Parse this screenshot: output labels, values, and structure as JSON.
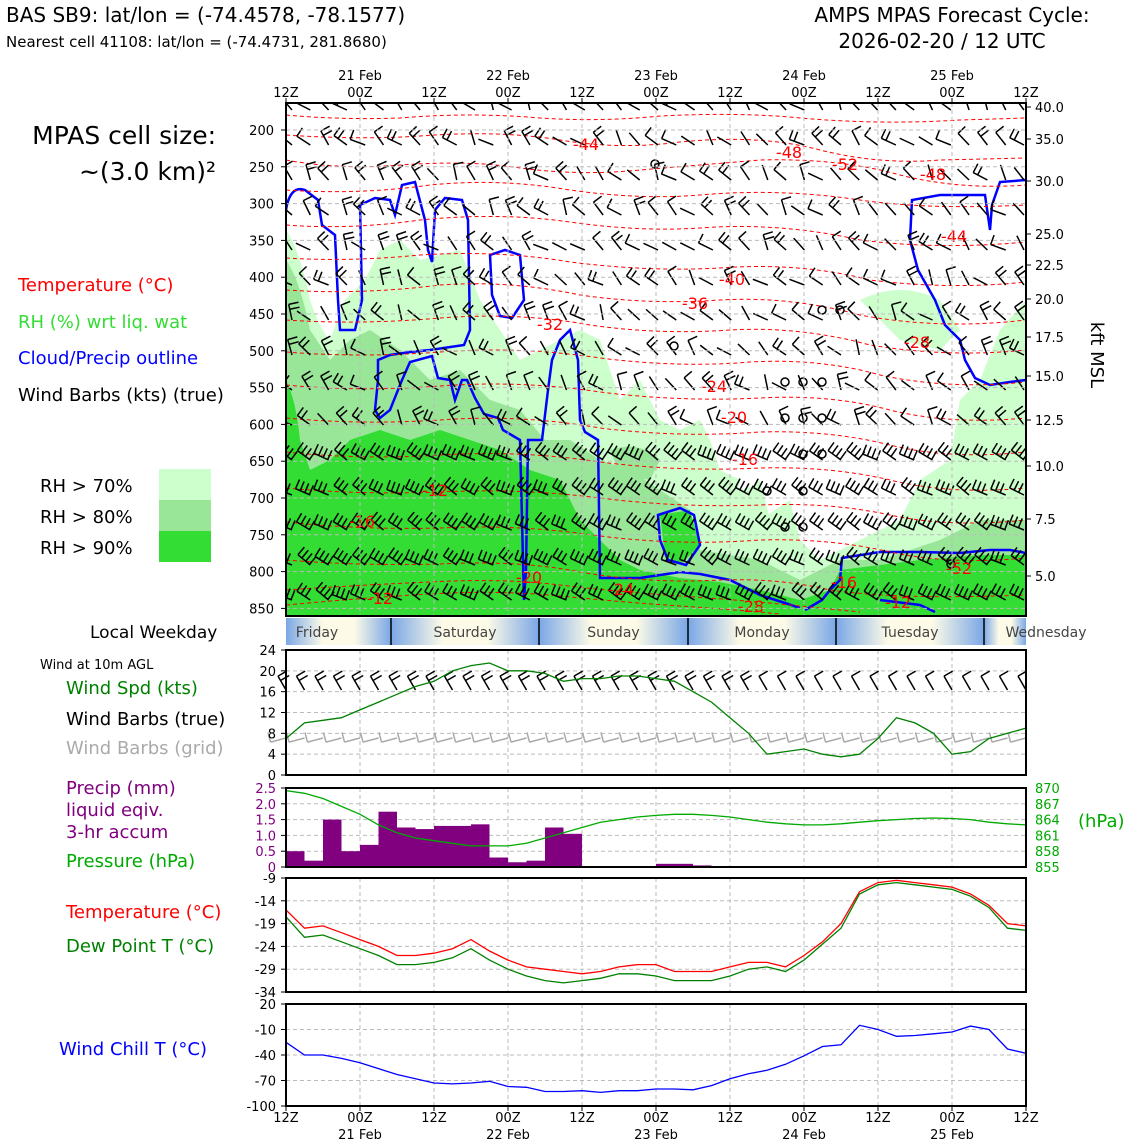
{
  "header": {
    "station_line": "BAS SB9: lat/lon = (-74.4578, -78.1577)",
    "cell_line": "Nearest cell 41108: lat/lon = (-74.4731, 281.8680)",
    "cycle_title": "AMPS MPAS Forecast Cycle:",
    "cycle_date": "2026-02-20 / 12 UTC"
  },
  "left_labels": {
    "cell_size_title": "MPAS cell size:",
    "cell_size_value": "~(3.0 km)²",
    "legend_temperature": "Temperature (°C)",
    "legend_rh": "RH (%) wrt liq. wat",
    "legend_cloud": "Cloud/Precip outline",
    "legend_wind": "Wind Barbs (kts) (true)",
    "rh_70": "RH > 70%",
    "rh_80": "RH > 80%",
    "rh_90": "RH > 90%",
    "local_weekday": "Local Weekday",
    "wind_10m": "Wind at 10m AGL",
    "wind_spd": "Wind Spd (kts)",
    "barbs_true": "Wind Barbs (true)",
    "barbs_grid": "Wind Barbs (grid)",
    "precip_1": "Precip (mm)",
    "precip_2": "liquid eqiv.",
    "precip_3": "3-hr accum",
    "pressure": "Pressure (hPa)",
    "temp": "Temperature (°C)",
    "dewpoint": "Dew Point T (°C)",
    "windchill": "Wind Chill T (°C)",
    "hpa_unit": "(hPa)",
    "kft_label": "kft MSL"
  },
  "colors": {
    "temperature": "#ff0000",
    "rh": "#22cc22",
    "cloud": "#0000ff",
    "wind": "#000000",
    "grid_barbs": "#aaaaaa",
    "precip": "#800080",
    "pressure": "#00aa00",
    "dewpoint": "#008000",
    "windchill": "#0000ff",
    "rh70": "#ccffcc",
    "rh80": "#99e699",
    "rh90": "#33dd33"
  },
  "time_axis": {
    "hour_labels": [
      "12Z",
      "00Z",
      "12Z",
      "00Z",
      "12Z",
      "00Z",
      "12Z",
      "00Z",
      "12Z",
      "00Z",
      "12Z"
    ],
    "date_labels": [
      "21 Feb",
      "22 Feb",
      "23 Feb",
      "24 Feb",
      "25 Feb"
    ]
  },
  "weekdays": [
    "Friday",
    "Saturday",
    "Sunday",
    "Monday",
    "Tuesday",
    "Wednesday"
  ],
  "chart_data": [
    {
      "type": "heatmap",
      "name": "time-height cross section",
      "y_axis_label": "",
      "pressure_levels_hPa": [
        200,
        250,
        300,
        350,
        400,
        450,
        500,
        550,
        600,
        650,
        700,
        750,
        800,
        850
      ],
      "height_kft_labels": [
        "40.0",
        "35.0",
        "30.0",
        "25.0",
        "22.5",
        "20.0",
        "17.5",
        "15.0",
        "12.5",
        "10.0",
        "7.5",
        "5.0"
      ],
      "right_axis_label": "kft MSL",
      "temperature_contour_labels": [
        "-44",
        "-48",
        "-52",
        "-48",
        "-44",
        "-40",
        "-36",
        "-32",
        "-28",
        "-24",
        "-20",
        "-16",
        "-12",
        "-16",
        "-20",
        "-24",
        "-28",
        "-12",
        "-12",
        "-16",
        "-52"
      ],
      "rh_thresholds_pct": [
        70,
        80,
        90
      ]
    },
    {
      "type": "line",
      "name": "wind speed at 10m",
      "ylim": [
        0,
        24
      ],
      "yticks": [
        "0",
        "4",
        "8",
        "12",
        "16",
        "20",
        "24"
      ],
      "x_hours": [
        0,
        3,
        6,
        9,
        12,
        15,
        18,
        21,
        24,
        27,
        30,
        33,
        36,
        39,
        42,
        45,
        48,
        51,
        54,
        57,
        60,
        63,
        66,
        69,
        72,
        75,
        78,
        81,
        84,
        87,
        90,
        93,
        96,
        99,
        102,
        105,
        108,
        111,
        114,
        117,
        120
      ],
      "series": [
        {
          "name": "Wind Spd (kts)",
          "values": [
            7,
            10,
            10.5,
            11,
            12.5,
            14,
            15.5,
            17,
            18,
            20,
            21,
            21.5,
            20,
            20,
            19.5,
            18,
            18.5,
            18.5,
            19,
            19,
            18.5,
            18,
            16,
            14,
            11,
            8,
            4,
            4.5,
            5,
            4,
            3.5,
            4,
            7,
            11,
            10,
            8,
            4,
            4.5,
            7,
            8,
            9
          ]
        }
      ]
    },
    {
      "type": "bar",
      "name": "precipitation and pressure",
      "ylim": [
        0,
        2.5
      ],
      "yticks": [
        "0",
        "0.5",
        "1.0",
        "1.5",
        "2.0",
        "2.5"
      ],
      "pressure_ticks": [
        "870",
        "867",
        "864",
        "861",
        "858",
        "855"
      ],
      "x_hours": [
        0,
        3,
        6,
        9,
        12,
        15,
        18,
        21,
        24,
        27,
        30,
        33,
        36,
        39,
        42,
        45,
        48,
        51,
        54,
        57,
        60,
        63,
        66,
        69,
        72,
        75,
        78,
        81,
        84,
        87,
        90,
        93,
        96,
        99,
        102,
        105,
        108,
        111,
        114,
        117,
        120
      ],
      "series": [
        {
          "name": "Precip (mm)",
          "values": [
            0.5,
            0.2,
            1.5,
            0.5,
            0.7,
            1.75,
            1.25,
            1.2,
            1.3,
            1.3,
            1.35,
            0.3,
            0.15,
            0.2,
            1.25,
            1.05,
            0,
            0,
            0,
            0,
            0.1,
            0.1,
            0.05,
            0,
            0,
            0,
            0,
            0,
            0,
            0,
            0,
            0,
            0,
            0,
            0,
            0,
            0,
            0,
            0,
            0,
            0
          ]
        },
        {
          "name": "Pressure (hPa)",
          "values": [
            869.5,
            869,
            868,
            866.5,
            865,
            863,
            861.5,
            860.5,
            860,
            859.5,
            859,
            859,
            859,
            859.5,
            860.5,
            861.5,
            862.5,
            863.5,
            864,
            864.5,
            864.8,
            865,
            865,
            864.8,
            864.5,
            864,
            863.5,
            863.2,
            863,
            863,
            863.2,
            863.5,
            863.8,
            864,
            864.2,
            864.3,
            864.2,
            864,
            863.5,
            863.2,
            863
          ]
        }
      ]
    },
    {
      "type": "line",
      "name": "temperature and dew point",
      "ylim": [
        -34,
        -9
      ],
      "yticks": [
        "-9",
        "-14",
        "-19",
        "-24",
        "-29",
        "-34"
      ],
      "x_hours": [
        0,
        3,
        6,
        9,
        12,
        15,
        18,
        21,
        24,
        27,
        30,
        33,
        36,
        39,
        42,
        45,
        48,
        51,
        54,
        57,
        60,
        63,
        66,
        69,
        72,
        75,
        78,
        81,
        84,
        87,
        90,
        93,
        96,
        99,
        102,
        105,
        108,
        111,
        114,
        117,
        120
      ],
      "series": [
        {
          "name": "Temperature (°C)",
          "values": [
            -16,
            -20,
            -19.5,
            -21,
            -22.5,
            -24,
            -26,
            -26,
            -25.5,
            -24.5,
            -22.5,
            -25,
            -27,
            -28.5,
            -29,
            -29.5,
            -30,
            -29.5,
            -28.5,
            -28,
            -28,
            -29.5,
            -29.5,
            -29.5,
            -28.5,
            -27.5,
            -27.5,
            -28.5,
            -26,
            -23,
            -19,
            -12,
            -10,
            -9.5,
            -10,
            -10.5,
            -11,
            -12.5,
            -15,
            -19,
            -19.5
          ]
        },
        {
          "name": "Dew Point T (°C)",
          "values": [
            -17.5,
            -22,
            -21.5,
            -23,
            -24.5,
            -26,
            -28,
            -28,
            -27.5,
            -26.5,
            -24.5,
            -27,
            -29,
            -30.5,
            -31.5,
            -32,
            -31.5,
            -31,
            -30,
            -30,
            -30.5,
            -31.5,
            -31.5,
            -31.5,
            -30.5,
            -29,
            -28.5,
            -29.5,
            -27,
            -23.5,
            -20,
            -12.5,
            -10.5,
            -10,
            -10.5,
            -11,
            -11.5,
            -13,
            -15.5,
            -20,
            -20.5
          ]
        }
      ]
    },
    {
      "type": "line",
      "name": "wind chill",
      "ylim": [
        -100,
        20
      ],
      "yticks": [
        "20",
        "-10",
        "-40",
        "-70",
        "-100"
      ],
      "x_hours": [
        0,
        3,
        6,
        9,
        12,
        15,
        18,
        21,
        24,
        27,
        30,
        33,
        36,
        39,
        42,
        45,
        48,
        51,
        54,
        57,
        60,
        63,
        66,
        69,
        72,
        75,
        78,
        81,
        84,
        87,
        90,
        93,
        96,
        99,
        102,
        105,
        108,
        111,
        114,
        117,
        120
      ],
      "series": [
        {
          "name": "Wind Chill T (°C)",
          "values": [
            -25,
            -40,
            -40,
            -44,
            -49,
            -56,
            -63,
            -68,
            -73,
            -74,
            -73,
            -71,
            -77,
            -78,
            -83,
            -83,
            -82,
            -84,
            -82,
            -82,
            -80,
            -80,
            -81,
            -76,
            -68,
            -62,
            -58,
            -51,
            -41,
            -30,
            -28,
            -5,
            -10,
            -18,
            -17,
            -15,
            -13,
            -6,
            -10,
            -33,
            -38
          ]
        }
      ]
    }
  ]
}
